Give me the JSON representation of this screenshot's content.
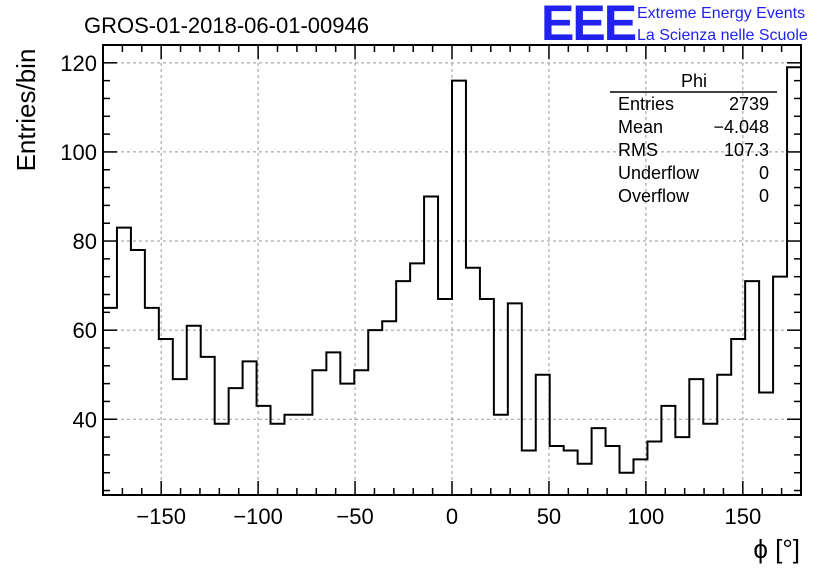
{
  "header": {
    "title": "GROS-01-2018-06-01-00946",
    "logo_text": "EEE",
    "logo_line1": "Extreme Energy Events",
    "logo_line2": "La Scienza nelle Scuole",
    "accent_color": "#2222ee"
  },
  "stats": {
    "name": "Phi",
    "rows": [
      {
        "label": "Entries",
        "value": "2739"
      },
      {
        "label": "Mean",
        "value": "−4.048"
      },
      {
        "label": "RMS",
        "value": "107.3"
      },
      {
        "label": "Underflow",
        "value": "0"
      },
      {
        "label": "Overflow",
        "value": "0"
      }
    ]
  },
  "chart_data": {
    "type": "histogram",
    "xlabel": "ϕ [°]",
    "ylabel": "Entries/bin",
    "xlim": [
      -180,
      180
    ],
    "ylim": [
      23,
      124
    ],
    "grid": true,
    "bin_width": 7.2,
    "x_ticks": [
      -150,
      -100,
      -50,
      0,
      50,
      100,
      150
    ],
    "x_tick_labels": [
      "−150",
      "−100",
      "−50",
      "0",
      "50",
      "100",
      "150"
    ],
    "y_ticks": [
      40,
      60,
      80,
      100,
      120
    ],
    "y_tick_labels": [
      "40",
      "60",
      "80",
      "100",
      "120"
    ],
    "values": [
      65,
      83,
      78,
      65,
      58,
      49,
      61,
      54,
      39,
      47,
      53,
      43,
      39,
      41,
      41,
      51,
      55,
      48,
      51,
      60,
      62,
      71,
      75,
      90,
      67,
      116,
      74,
      67,
      41,
      66,
      33,
      50,
      34,
      33,
      30,
      38,
      34,
      28,
      31,
      35,
      43,
      36,
      49,
      39,
      50,
      58,
      71,
      46,
      72,
      119
    ]
  }
}
